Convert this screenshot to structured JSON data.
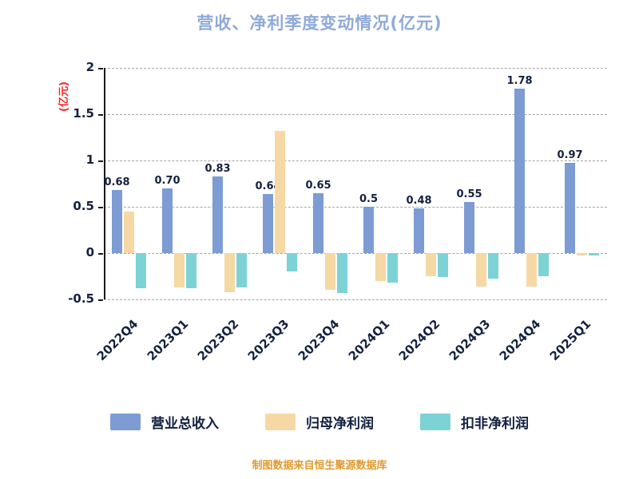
{
  "title": "营收、净利季度变动情况(亿元)",
  "y_axis_label": "(亿元)",
  "footer": "制图数据来自恒生聚源数据库",
  "colors": {
    "title": "#8FAAD8",
    "revenue": "#7C9CD3",
    "net_profit": "#F6D8A5",
    "deducted_profit": "#7DD2D6",
    "axis_text": "#13203F",
    "y_label": "#FF2222",
    "footer": "#E09A2F",
    "grid": "#A5A5A5"
  },
  "chart_data": {
    "type": "bar",
    "categories": [
      "2022Q4",
      "2023Q1",
      "2023Q2",
      "2023Q3",
      "2023Q4",
      "2024Q1",
      "2024Q2",
      "2024Q3",
      "2024Q4",
      "2025Q1"
    ],
    "series": [
      {
        "name": "营业总收入",
        "key": "revenue",
        "color_key": "revenue",
        "values": [
          0.68,
          0.7,
          0.83,
          0.64,
          0.65,
          0.5,
          0.48,
          0.55,
          1.78,
          0.97
        ],
        "labels": [
          "0.68",
          "0.70",
          "0.83",
          "0.64",
          "0.65",
          "0.5",
          "0.48",
          "0.55",
          "1.78",
          "0.97"
        ]
      },
      {
        "name": "归母净利润",
        "key": "net-profit",
        "color_key": "net_profit",
        "values": [
          0.45,
          -0.37,
          -0.42,
          1.32,
          -0.4,
          -0.3,
          -0.25,
          -0.36,
          -0.36,
          -0.03
        ]
      },
      {
        "name": "扣非净利润",
        "key": "deducted-profit",
        "color_key": "deducted_profit",
        "values": [
          -0.38,
          -0.38,
          -0.37,
          -0.2,
          -0.43,
          -0.32,
          -0.26,
          -0.28,
          -0.25,
          -0.03
        ]
      }
    ],
    "title": "营收、净利季度变动情况(亿元)",
    "xlabel": "",
    "ylabel": "(亿元)",
    "ylim": [
      -0.5,
      2
    ],
    "yticks": [
      2,
      1.5,
      1,
      0.5,
      0,
      -0.5
    ],
    "grid": "dashed-horizontal",
    "legend_position": "bottom"
  }
}
